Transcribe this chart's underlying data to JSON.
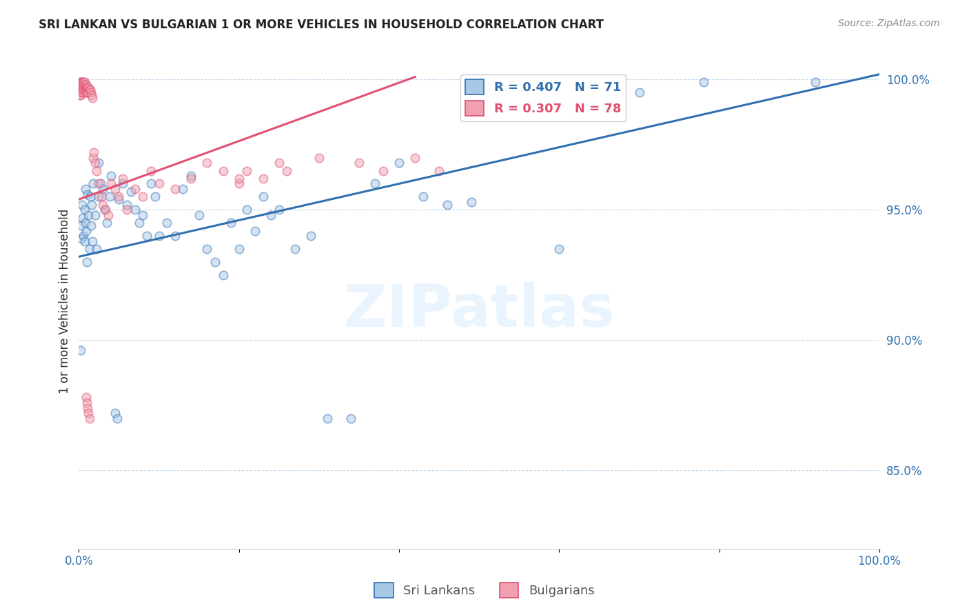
{
  "title": "SRI LANKAN VS BULGARIAN 1 OR MORE VEHICLES IN HOUSEHOLD CORRELATION CHART",
  "source": "Source: ZipAtlas.com",
  "ylabel": "1 or more Vehicles in Household",
  "ylabel_ticks": [
    "100.0%",
    "95.0%",
    "90.0%",
    "85.0%"
  ],
  "ylabel_tick_vals": [
    1.0,
    0.95,
    0.9,
    0.85
  ],
  "watermark": "ZIPatlas",
  "legend_label_blue": "Sri Lankans",
  "legend_label_pink": "Bulgarians",
  "blue_color": "#a8c8e8",
  "blue_line_color": "#3070b0",
  "pink_color": "#f0a0b0",
  "pink_line_color": "#e05070",
  "blue_scatter_x": [
    0.002,
    0.003,
    0.003,
    0.004,
    0.005,
    0.006,
    0.007,
    0.007,
    0.008,
    0.008,
    0.009,
    0.01,
    0.011,
    0.012,
    0.013,
    0.014,
    0.015,
    0.016,
    0.017,
    0.018,
    0.02,
    0.022,
    0.025,
    0.025,
    0.027,
    0.03,
    0.032,
    0.035,
    0.038,
    0.04,
    0.045,
    0.048,
    0.05,
    0.055,
    0.06,
    0.065,
    0.07,
    0.075,
    0.08,
    0.085,
    0.09,
    0.095,
    0.1,
    0.11,
    0.12,
    0.13,
    0.14,
    0.15,
    0.16,
    0.17,
    0.18,
    0.19,
    0.2,
    0.21,
    0.22,
    0.23,
    0.24,
    0.25,
    0.27,
    0.29,
    0.31,
    0.34,
    0.37,
    0.4,
    0.43,
    0.46,
    0.49,
    0.6,
    0.7,
    0.78,
    0.92
  ],
  "blue_scatter_y": [
    0.896,
    0.939,
    0.944,
    0.952,
    0.947,
    0.94,
    0.938,
    0.95,
    0.945,
    0.958,
    0.942,
    0.93,
    0.956,
    0.948,
    0.935,
    0.955,
    0.944,
    0.952,
    0.938,
    0.96,
    0.948,
    0.935,
    0.968,
    0.955,
    0.96,
    0.958,
    0.95,
    0.945,
    0.955,
    0.963,
    0.872,
    0.87,
    0.954,
    0.96,
    0.952,
    0.957,
    0.95,
    0.945,
    0.948,
    0.94,
    0.96,
    0.955,
    0.94,
    0.945,
    0.94,
    0.958,
    0.963,
    0.948,
    0.935,
    0.93,
    0.925,
    0.945,
    0.935,
    0.95,
    0.942,
    0.955,
    0.948,
    0.95,
    0.935,
    0.94,
    0.87,
    0.87,
    0.96,
    0.968,
    0.955,
    0.952,
    0.953,
    0.935,
    0.995,
    0.999,
    0.999
  ],
  "pink_scatter_x": [
    0.001,
    0.001,
    0.001,
    0.001,
    0.001,
    0.002,
    0.002,
    0.002,
    0.002,
    0.003,
    0.003,
    0.003,
    0.003,
    0.004,
    0.004,
    0.004,
    0.005,
    0.005,
    0.005,
    0.006,
    0.006,
    0.006,
    0.007,
    0.007,
    0.007,
    0.008,
    0.008,
    0.009,
    0.009,
    0.01,
    0.01,
    0.011,
    0.011,
    0.012,
    0.012,
    0.013,
    0.014,
    0.015,
    0.016,
    0.017,
    0.018,
    0.019,
    0.02,
    0.022,
    0.025,
    0.028,
    0.03,
    0.033,
    0.037,
    0.04,
    0.045,
    0.05,
    0.055,
    0.06,
    0.07,
    0.08,
    0.09,
    0.1,
    0.12,
    0.14,
    0.16,
    0.18,
    0.2,
    0.23,
    0.26,
    0.3,
    0.35,
    0.38,
    0.42,
    0.45,
    0.009,
    0.01,
    0.011,
    0.012,
    0.013,
    0.2,
    0.21,
    0.25
  ],
  "pink_scatter_y": [
    0.999,
    0.998,
    0.997,
    0.996,
    0.994,
    0.999,
    0.998,
    0.996,
    0.994,
    0.999,
    0.998,
    0.997,
    0.995,
    0.999,
    0.998,
    0.996,
    0.999,
    0.997,
    0.995,
    0.999,
    0.998,
    0.996,
    0.999,
    0.997,
    0.995,
    0.998,
    0.996,
    0.998,
    0.996,
    0.997,
    0.995,
    0.997,
    0.995,
    0.997,
    0.995,
    0.996,
    0.996,
    0.995,
    0.994,
    0.993,
    0.97,
    0.972,
    0.968,
    0.965,
    0.96,
    0.955,
    0.952,
    0.95,
    0.948,
    0.96,
    0.958,
    0.955,
    0.962,
    0.95,
    0.958,
    0.955,
    0.965,
    0.96,
    0.958,
    0.962,
    0.968,
    0.965,
    0.96,
    0.962,
    0.965,
    0.97,
    0.968,
    0.965,
    0.97,
    0.965,
    0.878,
    0.876,
    0.874,
    0.872,
    0.87,
    0.962,
    0.965,
    0.968
  ],
  "blue_line_x": [
    0.0,
    1.0
  ],
  "blue_line_y": [
    0.932,
    1.002
  ],
  "pink_line_x": [
    0.0,
    0.42
  ],
  "pink_line_y": [
    0.954,
    1.001
  ],
  "xlim": [
    0.0,
    1.0
  ],
  "ylim": [
    0.82,
    1.01
  ],
  "scatter_size": 80,
  "scatter_alpha": 0.5,
  "scatter_linewidth": 1.2
}
